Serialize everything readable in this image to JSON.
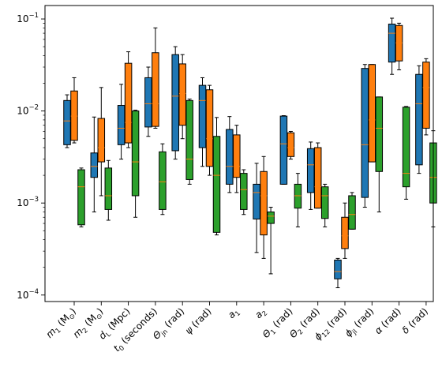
{
  "chart_data": {
    "type": "boxplot",
    "title": "",
    "xlabel": "",
    "ylabel": "",
    "yscale": "log",
    "ylim": [
      8.5e-05,
      0.14
    ],
    "y_ticks": [
      {
        "value": 0.1,
        "base": "10",
        "exp": "−1"
      },
      {
        "value": 0.01,
        "base": "10",
        "exp": "−2"
      },
      {
        "value": 0.001,
        "base": "10",
        "exp": "−3"
      },
      {
        "value": 0.0001,
        "base": "10",
        "exp": "−4"
      }
    ],
    "grid": false,
    "legend": "none",
    "series_colors": [
      "#1f77b4",
      "#ff7f0e",
      "#2ca02c"
    ],
    "median_color": "#ff7f0e",
    "categories": [
      {
        "main": "m",
        "sub": "1",
        "rest": " (M",
        "sub2": "⊙",
        "end": ")"
      },
      {
        "main": "m",
        "sub": "2",
        "rest": " (M",
        "sub2": "⊙",
        "end": ")"
      },
      {
        "main": "d",
        "sub": "L",
        "rest": " (Mpc)",
        "sub2": "",
        "end": ""
      },
      {
        "main": "t",
        "sub": "0",
        "rest": " (seconds)",
        "sub2": "",
        "end": ""
      },
      {
        "main": "Θ",
        "sub": "jn",
        "rest": " (rad)",
        "sub2": "",
        "end": ""
      },
      {
        "main": "ψ",
        "sub": "",
        "rest": " (rad)",
        "sub2": "",
        "end": ""
      },
      {
        "main": "a",
        "sub": "1",
        "rest": "",
        "sub2": "",
        "end": ""
      },
      {
        "main": "a",
        "sub": "2",
        "rest": "",
        "sub2": "",
        "end": ""
      },
      {
        "main": "Θ",
        "sub": "1",
        "rest": " (rad)",
        "sub2": "",
        "end": ""
      },
      {
        "main": "Θ",
        "sub": "2",
        "rest": " (rad)",
        "sub2": "",
        "end": ""
      },
      {
        "main": "ϕ",
        "sub": "12",
        "rest": " (rad)",
        "sub2": "",
        "end": ""
      },
      {
        "main": "ϕ",
        "sub": "jl",
        "rest": " (rad)",
        "sub2": "",
        "end": ""
      },
      {
        "main": "α",
        "sub": "",
        "rest": " (rad)",
        "sub2": "",
        "end": ""
      },
      {
        "main": "δ",
        "sub": "",
        "rest": " (rad)",
        "sub2": "",
        "end": ""
      }
    ],
    "series": [
      {
        "boxes": [
          {
            "whislo": 0.004,
            "q1": 0.0043,
            "med": 0.0078,
            "q3": 0.013,
            "whishi": 0.015
          },
          {
            "whislo": 0.0008,
            "q1": 0.0019,
            "med": 0.0025,
            "q3": 0.0035,
            "whishi": 0.0086
          },
          {
            "whislo": 0.003,
            "q1": 0.0043,
            "med": 0.0065,
            "q3": 0.0115,
            "whishi": 0.0195
          },
          {
            "whislo": 0.0053,
            "q1": 0.0067,
            "med": 0.012,
            "q3": 0.023,
            "whishi": 0.03
          },
          {
            "whislo": 0.003,
            "q1": 0.0037,
            "med": 0.0145,
            "q3": 0.041,
            "whishi": 0.05
          },
          {
            "whislo": 0.0025,
            "q1": 0.004,
            "med": 0.013,
            "q3": 0.019,
            "whishi": 0.023
          },
          {
            "whislo": 0.0013,
            "q1": 0.0016,
            "med": 0.0025,
            "q3": 0.0063,
            "whishi": 0.0087
          },
          {
            "whislo": 0.00029,
            "q1": 0.00067,
            "med": 0.0013,
            "q3": 0.0016,
            "whishi": 0.0027
          },
          {
            "whislo": 0.0016,
            "q1": 0.0016,
            "med": 0.0044,
            "q3": 0.0088,
            "whishi": 0.0089
          },
          {
            "whislo": 0.00085,
            "q1": 0.0013,
            "med": 0.0026,
            "q3": 0.0039,
            "whishi": 0.0046
          },
          {
            "whislo": 0.00012,
            "q1": 0.00015,
            "med": 0.00018,
            "q3": 0.00024,
            "whishi": 0.00025
          },
          {
            "whislo": 0.0009,
            "q1": 0.00115,
            "med": 0.0043,
            "q3": 0.029,
            "whishi": 0.032
          },
          {
            "whislo": 0.025,
            "q1": 0.034,
            "med": 0.07,
            "q3": 0.088,
            "whishi": 0.102
          },
          {
            "whislo": 0.0021,
            "q1": 0.0026,
            "med": 0.012,
            "q3": 0.025,
            "whishi": 0.031
          }
        ]
      },
      {
        "boxes": [
          {
            "whislo": 0.0045,
            "q1": 0.0048,
            "med": 0.0088,
            "q3": 0.0165,
            "whishi": 0.023
          },
          {
            "whislo": 0.0012,
            "q1": 0.0028,
            "med": 0.004,
            "q3": 0.0083,
            "whishi": 0.018
          },
          {
            "whislo": 0.004,
            "q1": 0.0045,
            "med": 0.0075,
            "q3": 0.033,
            "whishi": 0.044
          },
          {
            "whislo": 0.0065,
            "q1": 0.0068,
            "med": 0.012,
            "q3": 0.043,
            "whishi": 0.08
          },
          {
            "whislo": 0.005,
            "q1": 0.007,
            "med": 0.0155,
            "q3": 0.0325,
            "whishi": 0.041
          },
          {
            "whislo": 0.002,
            "q1": 0.0025,
            "med": 0.005,
            "q3": 0.017,
            "whishi": 0.019
          },
          {
            "whislo": 0.0013,
            "q1": 0.0019,
            "med": 0.0025,
            "q3": 0.0055,
            "whishi": 0.007
          },
          {
            "whislo": 0.00025,
            "q1": 0.00045,
            "med": 0.0012,
            "q3": 0.0022,
            "whishi": 0.0032
          },
          {
            "whislo": 0.003,
            "q1": 0.0032,
            "med": 0.004,
            "q3": 0.0058,
            "whishi": 0.006
          },
          {
            "whislo": 0.00088,
            "q1": 0.00088,
            "med": 0.0015,
            "q3": 0.004,
            "whishi": 0.0045
          },
          {
            "whislo": 0.00025,
            "q1": 0.00032,
            "med": 0.00044,
            "q3": 0.0007,
            "whishi": 0.001
          },
          {
            "whislo": 0.0028,
            "q1": 0.0028,
            "med": 0.008,
            "q3": 0.032,
            "whishi": 0.032
          },
          {
            "whislo": 0.028,
            "q1": 0.035,
            "med": 0.055,
            "q3": 0.085,
            "whishi": 0.09
          },
          {
            "whislo": 0.0055,
            "q1": 0.0065,
            "med": 0.018,
            "q3": 0.034,
            "whishi": 0.037
          }
        ]
      },
      {
        "boxes": [
          {
            "whislo": 0.00055,
            "q1": 0.00058,
            "med": 0.0015,
            "q3": 0.0023,
            "whishi": 0.0024
          },
          {
            "whislo": 0.00065,
            "q1": 0.00085,
            "med": 0.0012,
            "q3": 0.0024,
            "whishi": 0.0029
          },
          {
            "whislo": 0.0007,
            "q1": 0.0012,
            "med": 0.0028,
            "q3": 0.01,
            "whishi": 0.0102
          },
          {
            "whislo": 0.00075,
            "q1": 0.00085,
            "med": 0.0017,
            "q3": 0.0036,
            "whishi": 0.0044
          },
          {
            "whislo": 0.0016,
            "q1": 0.0018,
            "med": 0.003,
            "q3": 0.013,
            "whishi": 0.0135
          },
          {
            "whislo": 0.00045,
            "q1": 0.00048,
            "med": 0.002,
            "q3": 0.0053,
            "whishi": 0.0085
          },
          {
            "whislo": 0.00075,
            "q1": 0.00085,
            "med": 0.0014,
            "q3": 0.0021,
            "whishi": 0.0023
          },
          {
            "whislo": 0.00017,
            "q1": 0.0006,
            "med": 0.00072,
            "q3": 0.0008,
            "whishi": 0.0009
          },
          {
            "whislo": 0.00055,
            "q1": 0.00088,
            "med": 0.0012,
            "q3": 0.0016,
            "whishi": 0.0021
          },
          {
            "whislo": 0.00055,
            "q1": 0.00068,
            "med": 0.0012,
            "q3": 0.0015,
            "whishi": 0.0016
          },
          {
            "whislo": 0.00052,
            "q1": 0.00052,
            "med": 0.00075,
            "q3": 0.0012,
            "whishi": 0.0013
          },
          {
            "whislo": 0.0008,
            "q1": 0.0022,
            "med": 0.0065,
            "q3": 0.0142,
            "whishi": 0.0142
          },
          {
            "whislo": 0.0011,
            "q1": 0.0015,
            "med": 0.0021,
            "q3": 0.011,
            "whishi": 0.0112
          },
          {
            "whislo": 0.00055,
            "q1": 0.001,
            "med": 0.0019,
            "q3": 0.0045,
            "whishi": 0.0061
          }
        ]
      }
    ]
  }
}
